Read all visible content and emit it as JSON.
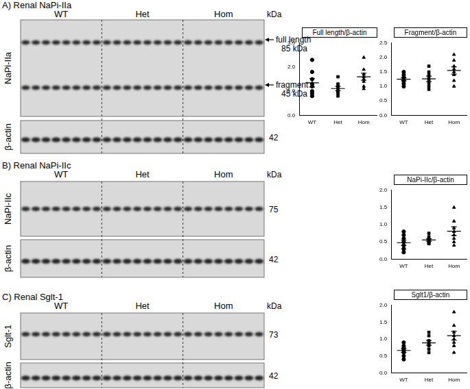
{
  "chart_data": [
    {
      "type": "scatter",
      "title": "Full length/β-actin",
      "series": [
        {
          "name": "WT",
          "marker": "circle",
          "color": "#000000",
          "values": [
            2.3,
            1.8,
            1.5,
            1.3,
            1.2,
            1.0,
            0.9,
            0.8
          ]
        },
        {
          "name": "Het",
          "marker": "square",
          "color": "#000000",
          "values": [
            1.6,
            1.3,
            1.2,
            1.1,
            1.0,
            1.0,
            0.9,
            0.8
          ]
        },
        {
          "name": "Hom",
          "marker": "triangle",
          "color": "#000000",
          "values": [
            2.4,
            1.9,
            1.7,
            1.6,
            1.5,
            1.4,
            1.2,
            1.1
          ]
        }
      ],
      "ylim": [
        0,
        3
      ],
      "yticks": [
        {
          "value": 0,
          "label": "0.0"
        },
        {
          "value": 1,
          "label": "1.0"
        },
        {
          "value": 2,
          "label": "2.0"
        },
        {
          "value": 3,
          "label": "3.0"
        }
      ],
      "grid": false
    },
    {
      "type": "scatter",
      "title": "Fragment/β-actin",
      "series": [
        {
          "name": "WT",
          "marker": "circle",
          "color": "#000000",
          "values": [
            1.5,
            1.4,
            1.3,
            1.3,
            1.2,
            1.2,
            1.1,
            1.0
          ]
        },
        {
          "name": "Het",
          "marker": "square",
          "color": "#000000",
          "values": [
            1.7,
            1.5,
            1.4,
            1.3,
            1.2,
            1.1,
            1.0,
            0.9
          ]
        },
        {
          "name": "Hom",
          "marker": "triangle",
          "color": "#000000",
          "values": [
            2.1,
            1.9,
            1.7,
            1.6,
            1.5,
            1.4,
            1.2,
            1.0
          ]
        }
      ],
      "ylim": [
        0,
        2.5
      ],
      "yticks": [
        {
          "value": 0,
          "label": "0.0"
        },
        0.5,
        {
          "value": 1,
          "label": "1.0"
        },
        1.5,
        {
          "value": 2,
          "label": "2.0"
        },
        2.5
      ],
      "grid": false
    },
    {
      "type": "scatter",
      "title": "NaPi-IIc/β-actin",
      "series": [
        {
          "name": "WT",
          "marker": "circle",
          "color": "#000000",
          "values": [
            0.8,
            0.7,
            0.6,
            0.5,
            0.4,
            0.3,
            0.3,
            0.2
          ]
        },
        {
          "name": "Het",
          "marker": "square",
          "color": "#000000",
          "values": [
            0.75,
            0.65,
            0.6,
            0.55,
            0.5,
            0.5,
            0.45,
            0.45
          ]
        },
        {
          "name": "Hom",
          "marker": "triangle",
          "color": "#000000",
          "values": [
            1.5,
            1.1,
            0.9,
            0.8,
            0.7,
            0.6,
            0.5,
            0.4
          ]
        }
      ],
      "ylim": [
        0,
        2
      ],
      "yticks": [
        {
          "value": 0,
          "label": "0.0"
        },
        0.5,
        {
          "value": 1,
          "label": "1.0"
        },
        1.5,
        {
          "value": 2,
          "label": "2.0"
        }
      ],
      "grid": false
    },
    {
      "type": "scatter",
      "title": "Sglt1/β-actin",
      "series": [
        {
          "name": "WT",
          "marker": "circle",
          "color": "#000000",
          "values": [
            0.9,
            0.8,
            0.75,
            0.7,
            0.65,
            0.6,
            0.5,
            0.4
          ]
        },
        {
          "name": "Het",
          "marker": "square",
          "color": "#000000",
          "values": [
            1.2,
            1.1,
            0.95,
            0.9,
            0.85,
            0.8,
            0.7,
            0.6
          ]
        },
        {
          "name": "Hom",
          "marker": "triangle",
          "color": "#000000",
          "values": [
            1.8,
            1.4,
            1.2,
            1.1,
            1.0,
            0.9,
            0.8,
            0.6
          ]
        }
      ],
      "ylim": [
        0,
        2
      ],
      "yticks": [
        {
          "value": 0,
          "label": "0.0"
        },
        0.5,
        {
          "value": 1,
          "label": "1.0"
        },
        1.5,
        {
          "value": 2,
          "label": "2.0"
        }
      ],
      "grid": false
    }
  ],
  "blots": [
    {
      "panel": "A) Renal NaPi-IIa",
      "groups": [
        "WT",
        "Het",
        "Hom"
      ],
      "protein": "NaPi-IIa",
      "unit": "kDa",
      "bands": [
        {
          "label": "full length",
          "size": "85 kDa"
        },
        {
          "label": "fragment",
          "size": "45 kDa"
        }
      ],
      "loading": "β-actin",
      "loading_size": "42"
    },
    {
      "panel": "B) Renal NaPi-IIc",
      "groups": [
        "WT",
        "Het",
        "Hom"
      ],
      "protein": "NaPi-IIc",
      "unit": "kDa",
      "bands": [
        {
          "size": "75"
        }
      ],
      "loading": "β-actin",
      "loading_size": "42"
    },
    {
      "panel": "C) Renal Sglt-1",
      "groups": [
        "WT",
        "Het",
        "Hom"
      ],
      "protein": "Sglt-1",
      "unit": "kDa",
      "bands": [
        {
          "size": "73"
        }
      ],
      "loading": "β-actin",
      "loading_size": "42"
    }
  ]
}
